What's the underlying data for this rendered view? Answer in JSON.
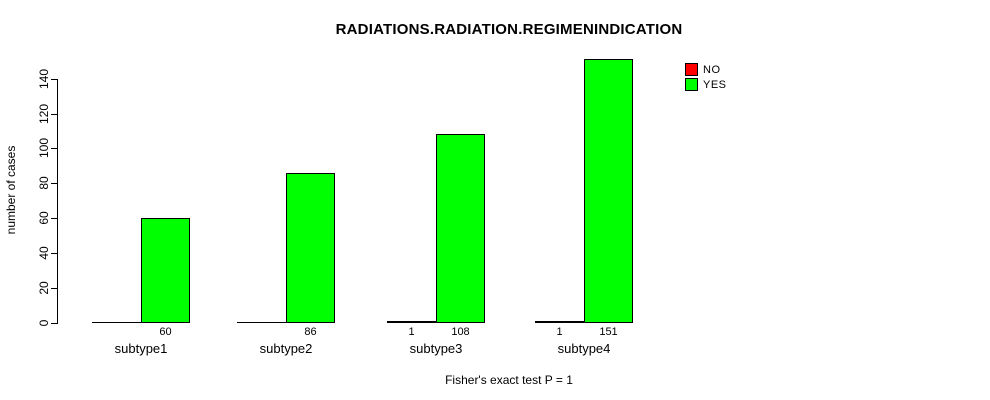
{
  "chart": {
    "title": "RADIATIONS.RADIATION.REGIMENINDICATION",
    "ylabel": "number of cases",
    "xlabel": "Fisher's exact test P = 1"
  },
  "chart_data": {
    "type": "bar",
    "grouped": true,
    "title": "RADIATIONS.RADIATION.REGIMENINDICATION",
    "xlabel": "Fisher's exact test P = 1",
    "ylabel": "number of cases",
    "categories": [
      "subtype1",
      "subtype2",
      "subtype3",
      "subtype4"
    ],
    "series": [
      {
        "name": "NO",
        "color": "#FF0000",
        "values": [
          0,
          0,
          1,
          1
        ],
        "value_labels": [
          "",
          "",
          "1",
          "1"
        ]
      },
      {
        "name": "YES",
        "color": "#00FF00",
        "values": [
          60,
          86,
          108,
          151
        ],
        "value_labels": [
          "60",
          "86",
          "108",
          "151"
        ]
      }
    ],
    "y_ticks": [
      0,
      20,
      40,
      60,
      80,
      100,
      120,
      140
    ],
    "ylim": [
      0,
      140
    ],
    "grid": false,
    "bar_border_color": "#000000",
    "legend": {
      "position": "top-right",
      "entries": [
        "NO",
        "YES"
      ]
    }
  }
}
